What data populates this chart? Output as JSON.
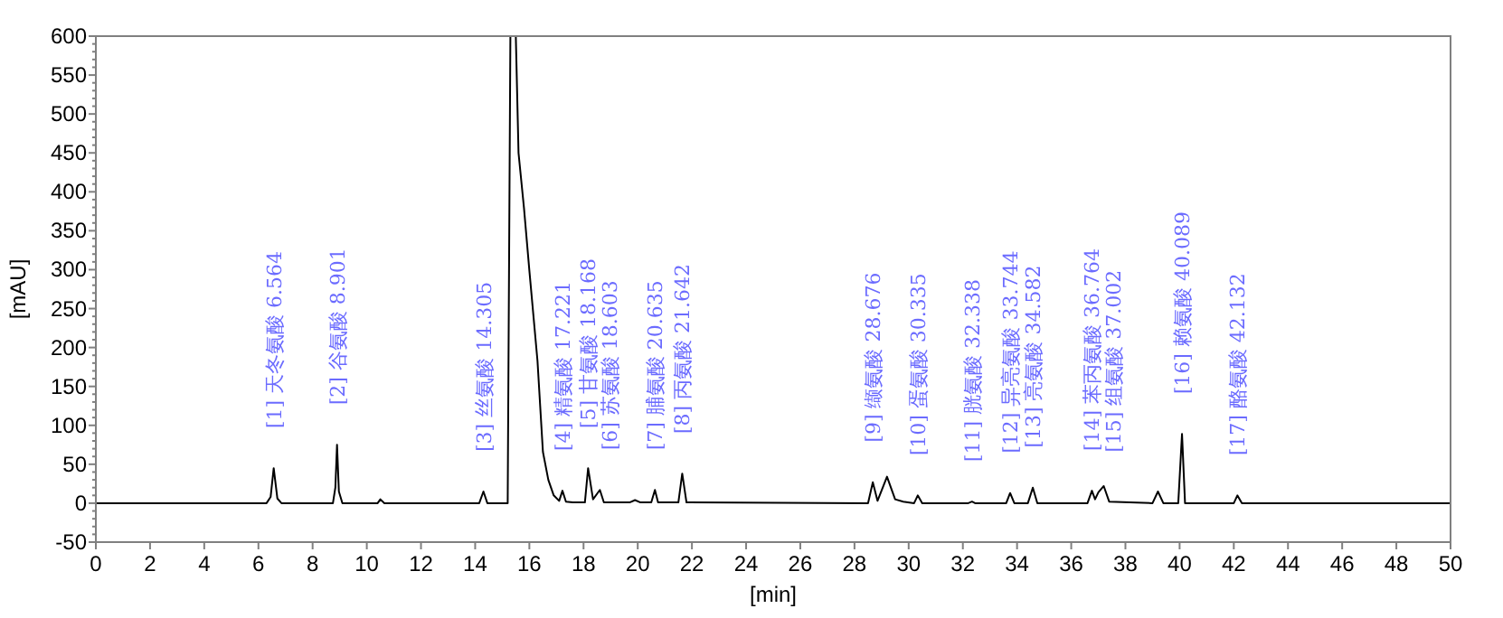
{
  "chart_data": {
    "type": "line",
    "xlabel": "[min]",
    "ylabel": "[mAU]",
    "xlim": [
      0,
      50
    ],
    "xticks": [
      0,
      2,
      4,
      6,
      8,
      10,
      12,
      14,
      16,
      18,
      20,
      22,
      24,
      26,
      28,
      30,
      32,
      34,
      36,
      38,
      40,
      42,
      44,
      46,
      48,
      50
    ],
    "ylim": [
      -50,
      600
    ],
    "yticks": [
      -50,
      0,
      50,
      100,
      150,
      200,
      250,
      300,
      350,
      400,
      450,
      500,
      550,
      600
    ],
    "grid": false,
    "marker": "none",
    "line_style": "solid",
    "series": [
      {
        "color": "#000000",
        "x": [
          0,
          6.3,
          6.45,
          6.564,
          6.7,
          6.85,
          8.75,
          8.84,
          8.901,
          8.97,
          9.1,
          10.4,
          10.5,
          10.65,
          14.15,
          14.305,
          14.45,
          15.2,
          15.3,
          15.5,
          15.6,
          15.8,
          16.0,
          16.3,
          16.5,
          16.7,
          16.9,
          17.1,
          17.221,
          17.35,
          17.6,
          18.05,
          18.168,
          18.35,
          18.603,
          18.75,
          19.7,
          19.9,
          20.1,
          20.5,
          20.635,
          20.75,
          21.5,
          21.642,
          21.8,
          28.5,
          28.676,
          28.85,
          29.2,
          29.5,
          29.8,
          30.2,
          30.335,
          30.5,
          32.2,
          32.338,
          32.45,
          33.6,
          33.744,
          33.9,
          34.4,
          34.582,
          34.75,
          36.6,
          36.764,
          36.88,
          37.002,
          37.2,
          37.4,
          39.0,
          39.2,
          39.4,
          39.95,
          40.089,
          40.2,
          42.0,
          42.132,
          42.3,
          50
        ],
        "values": [
          0,
          0,
          8,
          45,
          6,
          0,
          0,
          20,
          75,
          15,
          0,
          0,
          5,
          0,
          0,
          15,
          0,
          0,
          600,
          600,
          450,
          380,
          299,
          183,
          66,
          30,
          10,
          3,
          16,
          2,
          1,
          1,
          45,
          5,
          17,
          1,
          1,
          4,
          1,
          1,
          17,
          1,
          1,
          38,
          1,
          0,
          27,
          3,
          34,
          5,
          2,
          0,
          10,
          0,
          0,
          2,
          0,
          0,
          13,
          0,
          0,
          20,
          0,
          0,
          16,
          5,
          14,
          22,
          2,
          0,
          15,
          0,
          0,
          89,
          0,
          0,
          10,
          0,
          0
        ]
      }
    ],
    "annotations": [
      {
        "text": "[1] 天冬氨酸 6.564",
        "x": 6.564,
        "y": 45
      },
      {
        "text": "[2] 谷氨酸 8.901",
        "x": 8.901,
        "y": 75
      },
      {
        "text": "[3] 丝氨酸 14.305",
        "x": 14.305,
        "y": 15
      },
      {
        "text": "[4] 精氨酸 17.221",
        "x": 17.221,
        "y": 16
      },
      {
        "text": "[5] 甘氨酸 18.168",
        "x": 18.168,
        "y": 45
      },
      {
        "text": "[6] 苏氨酸 18.603",
        "x": 18.603,
        "y": 17
      },
      {
        "text": "[7] 脯氨酸 20.635",
        "x": 20.635,
        "y": 17
      },
      {
        "text": "[8] 丙氨酸 21.642",
        "x": 21.642,
        "y": 38
      },
      {
        "text": "[9] 缬氨酸 28.676",
        "x": 28.676,
        "y": 27
      },
      {
        "text": "[10] 蛋氨酸 30.335",
        "x": 30.335,
        "y": 10
      },
      {
        "text": "[11] 胱氨酸 32.338",
        "x": 32.338,
        "y": 2
      },
      {
        "text": "[12] 异亮氨酸 33.744",
        "x": 33.744,
        "y": 13
      },
      {
        "text": "[13] 亮氨酸 34.582",
        "x": 34.582,
        "y": 20
      },
      {
        "text": "[14] 苯丙氨酸 36.764",
        "x": 36.764,
        "y": 16
      },
      {
        "text": "[15] 组氨酸 37.002",
        "x": 37.002,
        "y": 14
      },
      {
        "text": "[16] 赖氨酸 40.089",
        "x": 40.089,
        "y": 89
      },
      {
        "text": "[17] 酪氨酸 42.132",
        "x": 42.132,
        "y": 10
      }
    ]
  }
}
